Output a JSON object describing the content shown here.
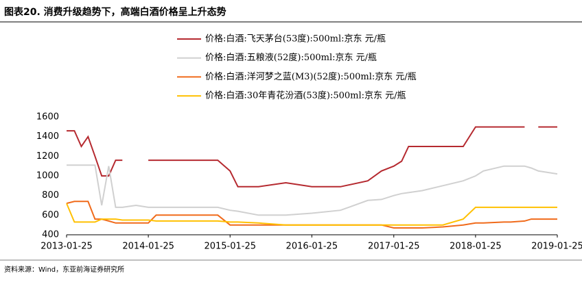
{
  "chart_data": {
    "type": "line",
    "title": "图表20. 消费升级趋势下，高端白酒价格呈上升态势",
    "source": "资料来源：Wind，东亚前海证券研究所",
    "x": [
      "2013-01-25",
      "2013-03-01",
      "2013-04-01",
      "2013-05-01",
      "2013-06-01",
      "2013-07-01",
      "2013-08-01",
      "2013-09-01",
      "2013-10-01",
      "2013-12-01",
      "2014-01-25",
      "2014-03-01",
      "2014-06-01",
      "2014-12-01",
      "2015-01-25",
      "2015-03-01",
      "2015-06-01",
      "2015-10-01",
      "2016-01-25",
      "2016-06-01",
      "2016-10-01",
      "2016-12-01",
      "2017-01-25",
      "2017-03-01",
      "2017-04-01",
      "2017-06-01",
      "2017-09-01",
      "2017-12-01",
      "2018-01-25",
      "2018-03-01",
      "2018-06-01",
      "2018-07-01",
      "2018-09-01",
      "2018-10-01",
      "2018-11-01",
      "2019-01-25"
    ],
    "xlim": [
      "2013-01-25",
      "2019-01-25"
    ],
    "xticks": [
      "2013-01-25",
      "2014-01-25",
      "2015-01-25",
      "2016-01-25",
      "2017-01-25",
      "2018-01-25",
      "2019-01-25"
    ],
    "ylim": [
      400,
      1600
    ],
    "yticks": [
      400,
      600,
      800,
      1000,
      1200,
      1400,
      1600
    ],
    "series": [
      {
        "name": "价格:白酒:飞天茅台(53度):500ml:京东 元/瓶",
        "color": "#b5292f",
        "values": [
          1460,
          1460,
          1300,
          1400,
          1200,
          1000,
          1000,
          1160,
          1160,
          null,
          1160,
          1160,
          1160,
          1160,
          1050,
          890,
          890,
          930,
          890,
          890,
          950,
          1050,
          1100,
          1150,
          1300,
          1300,
          1300,
          1300,
          1499,
          1499,
          1499,
          1499,
          1499,
          null,
          1499,
          1499
        ]
      },
      {
        "name": "价格:白酒:五粮液(52度):500ml:京东 元/瓶",
        "color": "#d0d0d0",
        "values": [
          1110,
          1110,
          1110,
          1110,
          1110,
          700,
          1100,
          680,
          680,
          700,
          680,
          680,
          680,
          680,
          650,
          640,
          600,
          600,
          620,
          650,
          750,
          760,
          800,
          820,
          830,
          850,
          900,
          950,
          1000,
          1050,
          1100,
          1100,
          1100,
          1080,
          1050,
          1020
        ]
      },
      {
        "name": "价格:白酒:洋河梦之蓝(M3)(52度):500ml:京东 元/瓶",
        "color": "#f06a1a",
        "values": [
          720,
          740,
          740,
          740,
          560,
          560,
          540,
          520,
          520,
          520,
          520,
          600,
          600,
          600,
          500,
          500,
          500,
          500,
          500,
          500,
          500,
          500,
          470,
          470,
          470,
          470,
          480,
          500,
          520,
          520,
          530,
          530,
          540,
          560,
          560,
          560
        ]
      },
      {
        "name": "价格:白酒:30年青花汾酒(53度):500ml:京东 元/瓶",
        "color": "#ffc000",
        "values": [
          720,
          530,
          530,
          530,
          530,
          560,
          560,
          560,
          550,
          550,
          550,
          540,
          540,
          540,
          530,
          530,
          520,
          500,
          500,
          500,
          500,
          500,
          500,
          500,
          500,
          500,
          500,
          560,
          680,
          680,
          680,
          680,
          680,
          680,
          680,
          680
        ]
      }
    ]
  }
}
